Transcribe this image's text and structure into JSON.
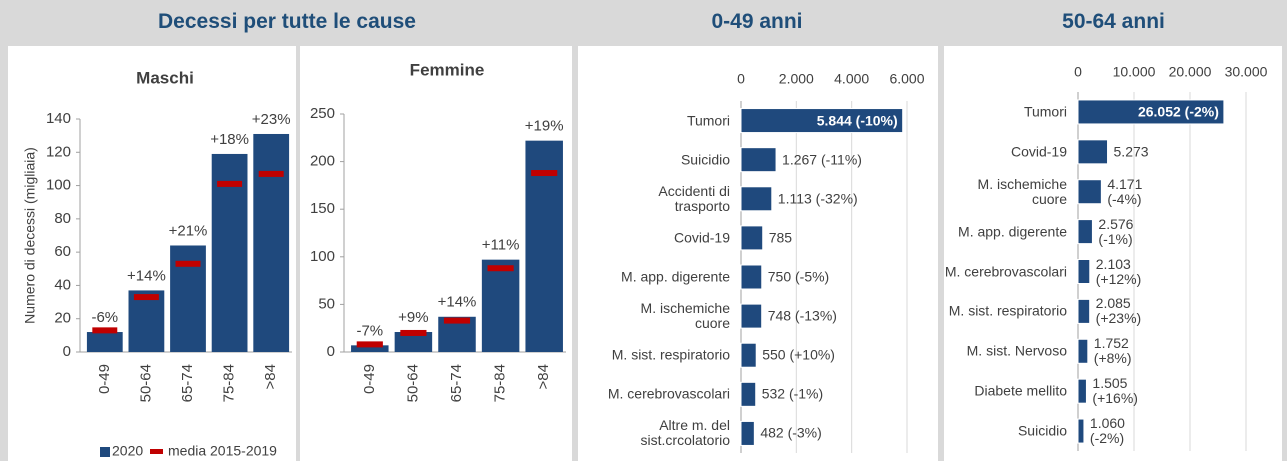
{
  "header_title": "Decessi per tutte le cause",
  "chart_data": [
    {
      "type": "bar",
      "title": "Maschi",
      "ylabel": "Numero di decessi (migliaia)",
      "categories": [
        "0-49",
        "50-64",
        "65-74",
        "75-84",
        ">84"
      ],
      "series": [
        {
          "name": "2020",
          "color": "#1f497d",
          "values": [
            12,
            37,
            64,
            119,
            131
          ]
        },
        {
          "name": "media 2015-2019",
          "color": "#c00000",
          "values": [
            13,
            33,
            53,
            101,
            107
          ]
        }
      ],
      "annotations": [
        "-6%",
        "+14%",
        "+21%",
        "+18%",
        "+23%"
      ],
      "ylim": [
        0,
        140
      ],
      "yticks": [
        0,
        20,
        40,
        60,
        80,
        100,
        120,
        140
      ]
    },
    {
      "type": "bar",
      "title": "Femmine",
      "categories": [
        "0-49",
        "50-64",
        "65-74",
        "75-84",
        ">84"
      ],
      "series": [
        {
          "color": "#1f497d",
          "values": [
            7,
            21,
            37,
            97,
            222
          ]
        },
        {
          "color": "#c00000",
          "values": [
            8,
            20,
            33,
            88,
            188
          ]
        }
      ],
      "annotations": [
        "-7%",
        "+9%",
        "+14%",
        "+11%",
        "+19%"
      ],
      "ylim": [
        0,
        250
      ],
      "yticks": [
        0,
        50,
        100,
        150,
        200,
        250
      ]
    },
    {
      "type": "hbar",
      "title": "0-49 anni",
      "color": "#1f497d",
      "grid": true,
      "categories": [
        "Tumori",
        "Suicidio",
        "Accidenti di trasporto",
        "Covid-19",
        "M. app. digerente",
        "M. ischemiche cuore",
        "M. sist. respiratorio",
        "M. cerebrovascolari",
        "Altre m. del sist.crcolatorio"
      ],
      "values": [
        5844,
        1267,
        1113,
        785,
        750,
        748,
        550,
        532,
        482
      ],
      "value_labels": [
        "5.844 (-10%)",
        "1.267 (-11%)",
        "1.113 (-32%)",
        "785",
        "750 (-5%)",
        "748 (-13%)",
        "550 (+10%)",
        "532 (-1%)",
        "482 (-3%)"
      ],
      "xlim": [
        0,
        6000
      ],
      "xticks": [
        0,
        {
          "value": 2000,
          "label": "2.000"
        },
        {
          "value": 4000,
          "label": "4.000"
        },
        {
          "value": 6000,
          "label": "6.000"
        }
      ]
    },
    {
      "type": "hbar",
      "title": "50-64 anni",
      "color": "#1f497d",
      "grid": true,
      "categories": [
        "Tumori",
        "Covid-19",
        "M. ischemiche cuore",
        "M. app. digerente",
        "M. cerebrovascolari",
        "M. sist. respiratorio",
        "M. sist. Nervoso",
        "Diabete mellito",
        "Suicidio"
      ],
      "values": [
        26052,
        5273,
        4171,
        2576,
        2103,
        2085,
        1752,
        1505,
        1060
      ],
      "value_labels": [
        "26.052 (-2%)",
        "5.273",
        "4.171 (-4%)",
        "2.576 (-1%)",
        "2.103 (+12%)",
        "2.085 (+23%)",
        "1.752 (+8%)",
        "1.505 (+16%)",
        "1.060 (-2%)"
      ],
      "xlim": [
        0,
        30000
      ],
      "xticks": [
        0,
        {
          "value": 10000,
          "label": "10.000"
        },
        {
          "value": 20000,
          "label": "20.000"
        },
        {
          "value": 30000,
          "label": "30.000"
        }
      ]
    }
  ]
}
